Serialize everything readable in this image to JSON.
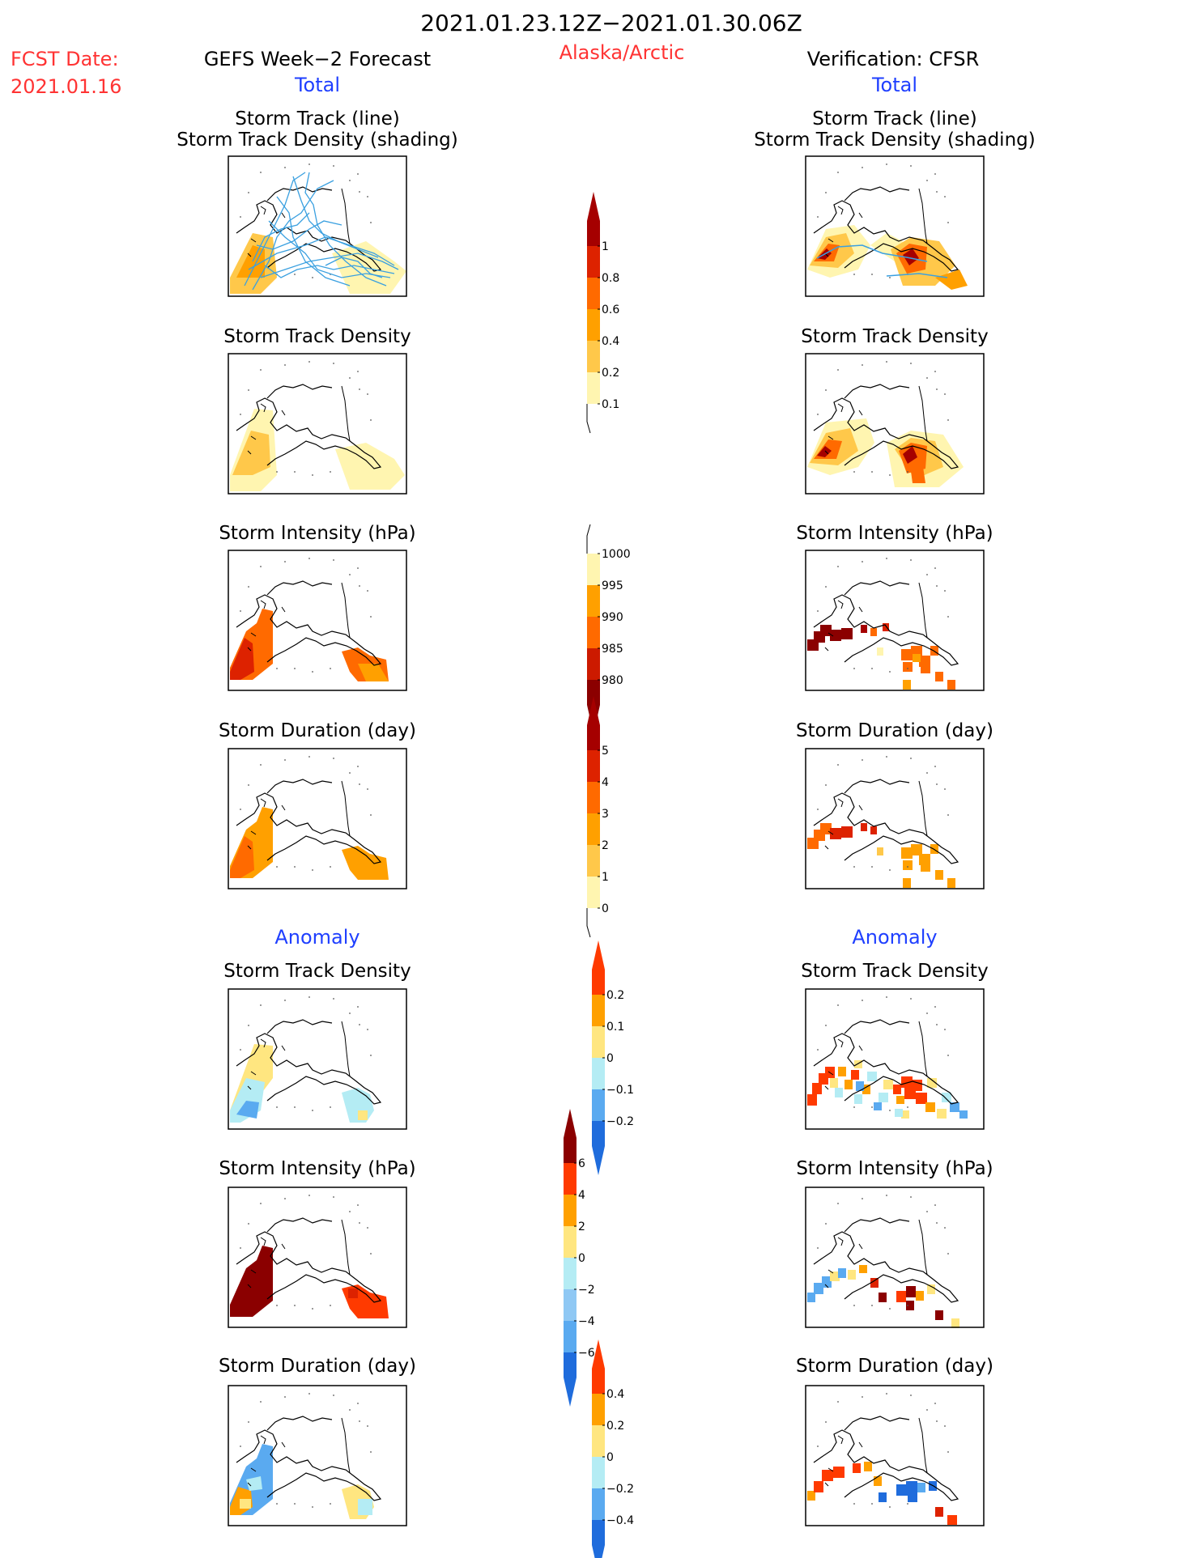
{
  "header": {
    "date_range": "2021.01.23.12Z−2021.01.30.06Z",
    "fcst_label": "FCST Date:",
    "fcst_date": "2021.01.16",
    "forecast_title": "GEFS Week−2 Forecast",
    "region": "Alaska/Arctic",
    "verification_title": "Verification: CFSR"
  },
  "sections": {
    "total": "Total",
    "anomaly": "Anomaly"
  },
  "panel_titles": {
    "track_line": "Storm Track (line)",
    "track_shading": "Storm Track Density (shading)",
    "density": "Storm Track Density",
    "intensity": "Storm Intensity (hPa)",
    "duration": "Storm Duration (day)"
  },
  "colors": {
    "fcst_text": "#ff3333",
    "region_text": "#ff3333",
    "section_text": "#1f3fff",
    "track_line": "#3aa0e0"
  },
  "colorbars": [
    {
      "id": "total-density",
      "labels": [
        "1",
        "0.8",
        "0.6",
        "0.4",
        "0.2",
        "0.1"
      ],
      "colors": [
        "#a50000",
        "#dd2200",
        "#ff6a00",
        "#ffa000",
        "#ffc84a",
        "#fff5b0"
      ]
    },
    {
      "id": "total-intensity",
      "labels": [
        "1000",
        "995",
        "990",
        "985",
        "980"
      ],
      "colors": [
        "#fff5b0",
        "#ffa000",
        "#ff6a00",
        "#cc1a00",
        "#8b0000"
      ]
    },
    {
      "id": "total-duration",
      "labels": [
        "5",
        "4",
        "3",
        "2",
        "1",
        "0"
      ],
      "colors": [
        "#a50000",
        "#dd2200",
        "#ff6a00",
        "#ffa000",
        "#ffc84a",
        "#fff5b0"
      ]
    },
    {
      "id": "anom-density",
      "labels": [
        "0.2",
        "0.1",
        "0",
        "−0.1",
        "−0.2"
      ],
      "colors": [
        "#ff3a00",
        "#ffa000",
        "#ffe680",
        "#b4ecf4",
        "#5aaaf0",
        "#1f6cdc"
      ]
    },
    {
      "id": "anom-intensity",
      "labels": [
        "6",
        "4",
        "2",
        "0",
        "−2",
        "−4",
        "−6"
      ],
      "colors": [
        "#8b0000",
        "#ff3a00",
        "#ffa000",
        "#ffe680",
        "#b4ecf4",
        "#8fc8f4",
        "#5aaaf0",
        "#1f6cdc"
      ]
    },
    {
      "id": "anom-duration",
      "labels": [
        "0.4",
        "0.2",
        "0",
        "−0.2",
        "−0.4"
      ],
      "colors": [
        "#ff3a00",
        "#ffa000",
        "#ffe680",
        "#b4ecf4",
        "#5aaaf0",
        "#1f6cdc"
      ]
    }
  ]
}
